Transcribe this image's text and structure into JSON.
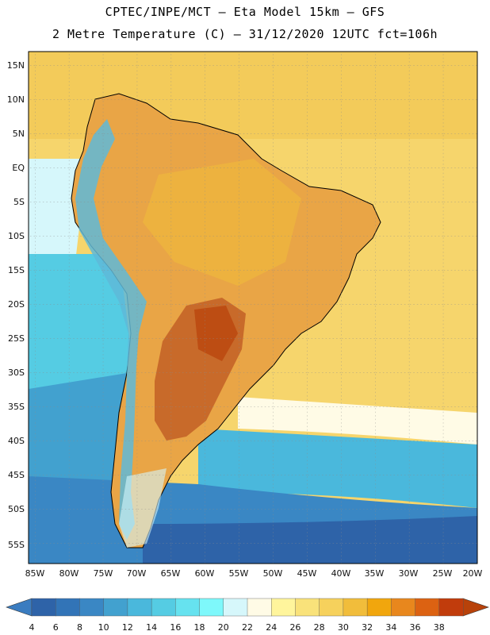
{
  "header": {
    "line1": "CPTEC/INPE/MCT –  Eta Model 15km – GFS",
    "line2": "2 Metre Temperature (C) – 31/12/2020 12UTC fct=106h"
  },
  "axes": {
    "lat_labels": [
      "15N",
      "10N",
      "5N",
      "EQ",
      "5S",
      "10S",
      "15S",
      "20S",
      "25S",
      "30S",
      "35S",
      "40S",
      "45S",
      "50S",
      "55S"
    ],
    "lon_labels": [
      "85W",
      "80W",
      "75W",
      "70W",
      "65W",
      "60W",
      "55W",
      "50W",
      "45W",
      "40W",
      "35W",
      "30W",
      "25W",
      "20W"
    ]
  },
  "colorbar": {
    "labels": [
      "4",
      "6",
      "8",
      "10",
      "12",
      "14",
      "16",
      "18",
      "20",
      "22",
      "24",
      "26",
      "28",
      "30",
      "32",
      "34",
      "36",
      "38"
    ],
    "colors": [
      "#2e63a8",
      "#3274b7",
      "#3a87c4",
      "#42a1cf",
      "#4ab8dc",
      "#55cce3",
      "#66e2ef",
      "#7ef8fb",
      "#d6f7fb",
      "#fffbe6",
      "#fff59c",
      "#f9e27a",
      "#f6d15c",
      "#f1bd3b",
      "#f1a60d",
      "#e8871d",
      "#dc6212",
      "#c13c0c"
    ],
    "low_color": "#3a7cc0",
    "high_color": "#b8420a"
  },
  "legend_colors": {
    "land_hot": "#c86a2a",
    "land_warm": "#e9a546",
    "land_mild": "#f3c766",
    "andes_cold": "#5fb8d8",
    "ocean_warm": "#f6d56c",
    "ocean_cool": "#4fc7e0",
    "ocean_cold": "#2f67aa"
  }
}
